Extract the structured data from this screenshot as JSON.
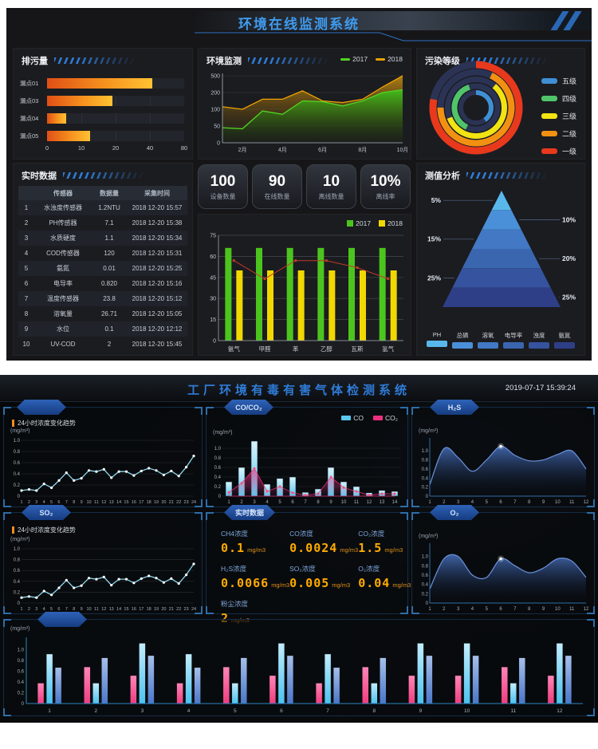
{
  "theme": {
    "top_title_color": "#3f9bf0",
    "bottom_title_color": "#2f7cd8",
    "digital_value_color": "#ffaa00",
    "pill_color": "#2e62b8",
    "corner_bracket_color": "#2e6da8"
  },
  "top": {
    "title": "环境在线监测系统",
    "discharge_title": "排污量",
    "env_title": "环境监测",
    "pollution_title": "污染等级",
    "analysis_title": "测值分析",
    "table": {
      "title": "实时数据",
      "columns": [
        "传感器",
        "数据量",
        "采集时间"
      ],
      "rows": [
        [
          "1",
          "水浊度传感器",
          "1.2NTU",
          "2018 12-20 15:57"
        ],
        [
          "2",
          "PH传感器",
          "7.1",
          "2018 12-20 15:38"
        ],
        [
          "3",
          "水质硬度",
          "1.1",
          "2018 12-20 15:34"
        ],
        [
          "4",
          "COD传感器",
          "120",
          "2018 12-20 15:31"
        ],
        [
          "5",
          "氨氮",
          "0.01",
          "2018 12-20 15:25"
        ],
        [
          "6",
          "电导率",
          "0.820",
          "2018 12-20 15:16"
        ],
        [
          "7",
          "温度传感器",
          "23.8",
          "2018 12-20 15:12"
        ],
        [
          "8",
          "溶氧量",
          "26.71",
          "2018 12-20 15:05"
        ],
        [
          "9",
          "水位",
          "0.1",
          "2018 12-20 12:12"
        ],
        [
          "10",
          "UV-COD",
          "2",
          "2018 12-20 15:45"
        ]
      ]
    },
    "stats": [
      {
        "value": "100",
        "label": "设备数量"
      },
      {
        "value": "90",
        "label": "在线数量"
      },
      {
        "value": "10",
        "label": "离线数量"
      },
      {
        "value": "10%",
        "label": "离线率"
      }
    ]
  },
  "bottom": {
    "title": "工厂环境有毒有害气体检测系统",
    "timestamp": "2019-07-17 15:39:24",
    "trend_label": "24小时浓度变化趋势",
    "unit": "(mg/m³)",
    "pills": {
      "ch4": "",
      "co": "CO/CO₂",
      "h2s": "H₂S",
      "so2": "SO₂",
      "realtime": "实时数据",
      "o2": "O₂",
      "monthly": ""
    },
    "realtime_items": [
      {
        "label": "CH4浓度",
        "value": "0.1",
        "unit": "mg/m3"
      },
      {
        "label": "CO浓度",
        "value": "0.0024",
        "unit": "mg/m3"
      },
      {
        "label": "CO₂浓度",
        "value": "1.5",
        "unit": "mg/m3"
      },
      {
        "label": "H₂S浓度",
        "value": "0.0066",
        "unit": "mg/m3"
      },
      {
        "label": "SO₂浓度",
        "value": "0.005",
        "unit": "mg/m3"
      },
      {
        "label": "O₂浓度",
        "value": "0.04",
        "unit": "mg/m3"
      },
      {
        "label": "粉尘浓度",
        "value": "2",
        "unit": "mg/m3"
      }
    ]
  },
  "chart_data": [
    {
      "id": "discharge",
      "type": "bar",
      "orientation": "horizontal",
      "title": "排污量",
      "categories": [
        "漏点01",
        "漏点03",
        "漏点04",
        "漏点05"
      ],
      "values": [
        43,
        19,
        5.5,
        12.5
      ],
      "xticks": [
        0,
        10,
        20,
        40,
        80
      ],
      "bar_colors": [
        "#e04f16",
        "#ffc233"
      ]
    },
    {
      "id": "env-area",
      "type": "area",
      "title": "环境监测",
      "x_labels": [
        "2月",
        "4月",
        "6月",
        "8月",
        "10月"
      ],
      "yticks": [
        0,
        50,
        100,
        200,
        500
      ],
      "series": [
        {
          "name": "2017",
          "color": "#52d423",
          "values": [
            45,
            42,
            95,
            85,
            150,
            145,
            120,
            150,
            200,
            250
          ]
        },
        {
          "name": "2018",
          "color": "#f0a202",
          "values": [
            115,
            100,
            160,
            160,
            230,
            150,
            140,
            160,
            300,
            500
          ]
        }
      ]
    },
    {
      "id": "pollution",
      "type": "pie",
      "subtype": "donut-rings",
      "title": "污染等级",
      "track_color": "#2b3355",
      "levels": [
        {
          "label": "五级",
          "color": "#3f8fd4",
          "pct": 40
        },
        {
          "label": "四级",
          "color": "#4fc46a",
          "pct": 38
        },
        {
          "label": "三级",
          "color": "#f2e313",
          "pct": 58
        },
        {
          "label": "二级",
          "color": "#f29111",
          "pct": 68
        },
        {
          "label": "一级",
          "color": "#e8391d",
          "pct": 78
        }
      ]
    },
    {
      "id": "gas-bars",
      "type": "bar",
      "categories": [
        "氨气",
        "甲醛",
        "苯",
        "乙醇",
        "瓦斯",
        "氢气"
      ],
      "yticks": [
        0,
        15,
        30,
        45,
        60,
        75
      ],
      "ymax": 75,
      "series": [
        {
          "name": "2017",
          "color": "#4cc41e",
          "values": [
            66,
            66,
            66,
            66,
            66,
            66
          ]
        },
        {
          "name": "2018",
          "color": "#f0d800",
          "values": [
            50,
            50,
            50,
            50,
            50,
            50
          ]
        }
      ],
      "line": {
        "color": "#c0392b",
        "values": [
          57,
          44,
          57,
          57,
          52,
          44
        ]
      }
    },
    {
      "id": "pyramid",
      "type": "pie",
      "subtype": "pyramid",
      "title": "测值分析",
      "layers": [
        {
          "pct": "5%"
        },
        {
          "pct": "10%"
        },
        {
          "pct": "15%"
        },
        {
          "pct": "20%"
        },
        {
          "pct": "25%"
        },
        {
          "pct": "25%"
        }
      ],
      "legend": [
        {
          "label": "PH",
          "color": "#58b8ec"
        },
        {
          "label": "总磷",
          "color": "#4a90d9"
        },
        {
          "label": "溶氧",
          "color": "#4278c4"
        },
        {
          "label": "电导率",
          "color": "#3a66b0"
        },
        {
          "label": "浊度",
          "color": "#35539e"
        },
        {
          "label": "氨氮",
          "color": "#2e3f88"
        }
      ]
    },
    {
      "id": "trend-ch4",
      "type": "line",
      "title": "24小时浓度变化趋势",
      "unit": "(mg/m³)",
      "color": "#8bd8f0",
      "ymax": 1.0,
      "yticks": [
        "0",
        "0.2",
        "0.4",
        "0.6",
        "0.8",
        "1.0"
      ],
      "x": [
        1,
        2,
        3,
        4,
        5,
        6,
        7,
        8,
        9,
        10,
        11,
        12,
        13,
        14,
        15,
        16,
        17,
        18,
        19,
        20,
        21,
        22,
        23,
        24
      ],
      "values": [
        0.1,
        0.12,
        0.1,
        0.22,
        0.15,
        0.28,
        0.42,
        0.28,
        0.32,
        0.46,
        0.44,
        0.48,
        0.33,
        0.44,
        0.44,
        0.37,
        0.45,
        0.5,
        0.46,
        0.38,
        0.45,
        0.36,
        0.52,
        0.72
      ]
    },
    {
      "id": "trend-so2",
      "type": "line",
      "title": "24小时浓度变化趋势",
      "unit": "(mg/m³)",
      "color": "#8bd8f0",
      "ymax": 1.0,
      "yticks": [
        "0",
        "0.2",
        "0.4",
        "0.6",
        "0.8",
        "1.0"
      ],
      "x": [
        1,
        2,
        3,
        4,
        5,
        6,
        7,
        8,
        9,
        10,
        11,
        12,
        13,
        14,
        15,
        16,
        17,
        18,
        19,
        20,
        21,
        22,
        23,
        24
      ],
      "values": [
        0.1,
        0.12,
        0.1,
        0.22,
        0.15,
        0.28,
        0.42,
        0.28,
        0.32,
        0.46,
        0.44,
        0.48,
        0.33,
        0.44,
        0.44,
        0.37,
        0.45,
        0.5,
        0.46,
        0.38,
        0.45,
        0.36,
        0.52,
        0.72
      ]
    },
    {
      "id": "co-co2",
      "type": "bar",
      "subtype": "bar-area",
      "unit": "(mg/m³)",
      "ymax": 1.25,
      "yticks": [
        "0",
        "0.2",
        "0.4",
        "0.6",
        "0.8",
        "1.0"
      ],
      "x": [
        1,
        2,
        3,
        4,
        5,
        6,
        7,
        8,
        9,
        10,
        11,
        12,
        13,
        14
      ],
      "bars": {
        "name": "CO",
        "color": "#5ac8ee",
        "color_light": "#d9f4fd",
        "values": [
          0.3,
          0.6,
          1.15,
          0.25,
          0.37,
          0.4,
          0.08,
          0.15,
          0.6,
          0.3,
          0.2,
          0.07,
          0.12,
          0.1
        ]
      },
      "area": {
        "name": "CO₂",
        "color": "#ee2f7f",
        "values": [
          0.08,
          0.27,
          0.58,
          0.1,
          0.2,
          0.07,
          0.02,
          0.05,
          0.4,
          0.18,
          0.1,
          0.02,
          0.05,
          0.05
        ]
      }
    },
    {
      "id": "h2s",
      "type": "area",
      "subtype": "wave",
      "unit": "(mg/m³)",
      "ymax": 1.25,
      "yticks": [
        "0",
        "0.2",
        "0.4",
        "0.6",
        "0.8",
        "1.0"
      ],
      "x": [
        1,
        2,
        3,
        4,
        5,
        6,
        7,
        8,
        9,
        10,
        11,
        12
      ],
      "values": [
        0.25,
        1.05,
        0.85,
        0.55,
        0.8,
        1.1,
        0.9,
        0.78,
        0.8,
        0.92,
        1.0,
        0.6
      ],
      "highlight_index": 5
    },
    {
      "id": "o2",
      "type": "area",
      "subtype": "wave",
      "unit": "(mg/m³)",
      "ymax": 1.25,
      "yticks": [
        "0",
        "0.2",
        "0.4",
        "0.6",
        "0.8",
        "1.0"
      ],
      "x": [
        1,
        2,
        3,
        4,
        5,
        6,
        7,
        8,
        9,
        10,
        11,
        12
      ],
      "values": [
        0.3,
        0.95,
        1.0,
        0.6,
        0.55,
        0.95,
        0.8,
        0.65,
        0.75,
        0.95,
        0.9,
        0.55
      ],
      "highlight_index": 5
    },
    {
      "id": "monthly",
      "type": "bar",
      "subtype": "grouped",
      "unit": "(mg/m³)",
      "ymax": 1.2,
      "yticks": [
        "0",
        "0.2",
        "0.4",
        "0.6",
        "0.8",
        "1.0"
      ],
      "x": [
        1,
        2,
        3,
        4,
        5,
        6,
        7,
        8,
        9,
        10,
        11,
        12
      ],
      "series": [
        {
          "color": "#ee3d7f",
          "color_light": "#ff86b8",
          "values": [
            0.38,
            0.68,
            0.52,
            0.38,
            0.68,
            0.52,
            0.38,
            0.68,
            0.52,
            0.52,
            0.68,
            0.52
          ]
        },
        {
          "color": "#4cc2ef",
          "color_light": "#c2edfd",
          "values": [
            0.92,
            0.38,
            1.12,
            0.92,
            0.38,
            1.12,
            0.92,
            0.38,
            1.12,
            1.12,
            0.38,
            1.12
          ]
        },
        {
          "color": "#4a77c9",
          "color_light": "#a6c0ea",
          "values": [
            0.67,
            0.85,
            0.89,
            0.67,
            0.85,
            0.89,
            0.67,
            0.85,
            0.89,
            0.89,
            0.85,
            0.89
          ]
        }
      ]
    }
  ]
}
